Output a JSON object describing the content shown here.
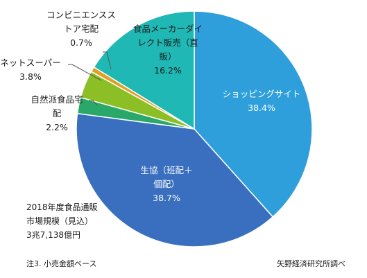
{
  "chart_data": {
    "type": "pie",
    "slices": [
      {
        "label_lines": [
          "ショッピングサイト"
        ],
        "value_text": "38.4%",
        "value": 38.4,
        "color": "#2e9fdb",
        "text_color": "#ffffff"
      },
      {
        "label_lines": [
          "生協（班配＋",
          "個配）"
        ],
        "value_text": "38.7%",
        "value": 38.7,
        "color": "#3a6fbf",
        "text_color": "#ffffff"
      },
      {
        "label_lines": [
          "自然派食品宅",
          "配"
        ],
        "value_text": "2.2%",
        "value": 2.2,
        "color": "#2aa86a",
        "text_color": "#1a1a1a"
      },
      {
        "label_lines": [
          "ネットスーパー"
        ],
        "value_text": "3.8%",
        "value": 3.8,
        "color": "#8cbf26",
        "text_color": "#1a1a1a"
      },
      {
        "label_lines": [
          "コンビニエンスス",
          "トア宅配"
        ],
        "value_text": "0.7%",
        "value": 0.7,
        "color": "#e0a028",
        "text_color": "#1a1a1a"
      },
      {
        "label_lines": [
          "食品メーカーダイ",
          "レクト販売（直",
          "販）"
        ],
        "value_text": "16.2%",
        "value": 16.2,
        "color": "#1fb8b4",
        "text_color": "#1a1a1a"
      }
    ],
    "total_lines": [
      "2018年度食品通販",
      "市場規模（見込）",
      "3兆7,138億円"
    ],
    "note": "注3. 小売金額ベース",
    "source": "矢野経済研究所調べ"
  }
}
